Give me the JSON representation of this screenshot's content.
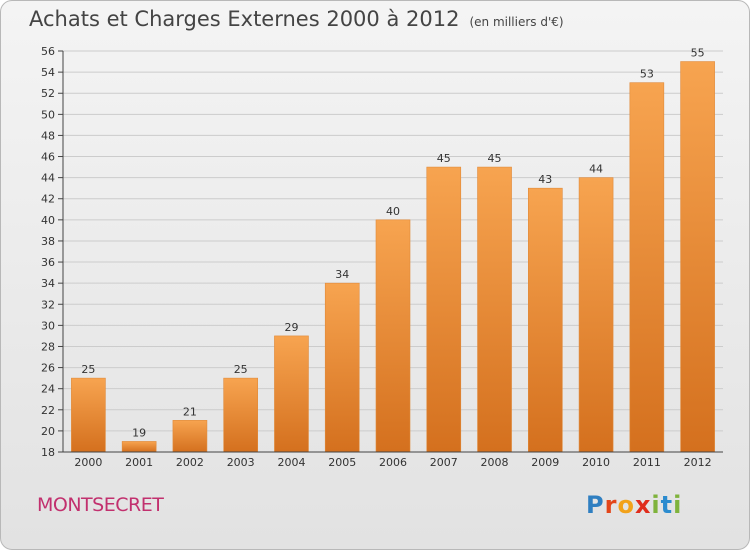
{
  "header": {
    "title": "Achats et Charges Externes 2000 à 2012",
    "unit": "(en milliers d'€)"
  },
  "footer": {
    "town": "MONTSECRET",
    "logo": [
      "P",
      "r",
      "o",
      "x",
      "i",
      "t",
      "i"
    ]
  },
  "colors": {
    "bar_top": "#f7a450",
    "bar_bottom": "#d4701e",
    "grid": "#cccccc",
    "axis": "#444444"
  },
  "chart_data": {
    "type": "bar",
    "title": "Achats et Charges Externes 2000 à 2012",
    "subtitle": "(en milliers d'€)",
    "xlabel": "",
    "ylabel": "",
    "categories": [
      "2000",
      "2001",
      "2002",
      "2003",
      "2004",
      "2005",
      "2006",
      "2007",
      "2008",
      "2009",
      "2010",
      "2011",
      "2012"
    ],
    "values": [
      25,
      19,
      21,
      25,
      29,
      34,
      40,
      45,
      45,
      43,
      44,
      53,
      55
    ],
    "ylim": [
      18,
      56
    ],
    "yticks": [
      18,
      20,
      22,
      24,
      26,
      28,
      30,
      32,
      34,
      36,
      38,
      40,
      42,
      44,
      46,
      48,
      50,
      52,
      54,
      56
    ],
    "grid": true,
    "data_labels": true
  }
}
